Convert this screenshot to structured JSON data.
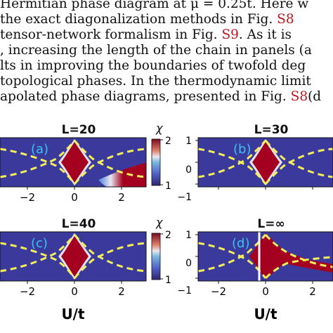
{
  "text_lines": [
    {
      "pre": "Hermitian phase diagram at ",
      "ref": "",
      "post": "μ = 0.25t. Here w"
    },
    {
      "pre": " the exact diagonalization methods in Fig. ",
      "ref": "S8",
      "post": ""
    },
    {
      "pre": "tensor-network formalism in Fig. ",
      "ref": "S9",
      "post": ".  As it is"
    },
    {
      "pre": ", increasing the length of the chain in panels (a",
      "ref": "",
      "post": ""
    },
    {
      "pre": "lts in improving the boundaries of twofold deg",
      "ref": "",
      "post": ""
    },
    {
      "pre": "topological phases. In the thermodynamic limit",
      "ref": "",
      "post": ""
    },
    {
      "pre": "apolated phase diagrams, presented in Fig. ",
      "ref": "S8",
      "post": "(d"
    }
  ],
  "colors": {
    "text": "#111111",
    "reference": "#c0141c",
    "panel_label": "#36c4ef",
    "boundary": "#f3ee5a",
    "background_low": "#3b3a9c",
    "region_high": "#a4001f",
    "edge_glow": "#ffffff",
    "marker_line": "#ffffff"
  },
  "panels": [
    {
      "title": "L=20",
      "label": "(a)"
    },
    {
      "title": "L=30",
      "label": "(b)"
    },
    {
      "title": "L=40",
      "label": "(c)"
    },
    {
      "title": "L=∞",
      "label": "(d)"
    }
  ],
  "colorbar": {
    "symbol": "χ",
    "max_label": "2",
    "min_label": "1"
  },
  "x_ticks": [
    "−2",
    "0",
    "2"
  ],
  "y_ticks": [
    "1",
    "0",
    "−1"
  ],
  "x_label": "U/t",
  "chart_data": {
    "type": "heatmap",
    "x_range": [
      -3,
      3
    ],
    "y_range": [
      -1,
      1
    ],
    "colorbar_range": [
      1,
      2
    ],
    "panels": [
      "L=20",
      "L=30",
      "L=40",
      "L=∞"
    ],
    "x_label": "U/t",
    "x_ticks": [
      -2,
      0,
      2
    ],
    "y_ticks": [
      -1,
      0,
      1
    ]
  }
}
